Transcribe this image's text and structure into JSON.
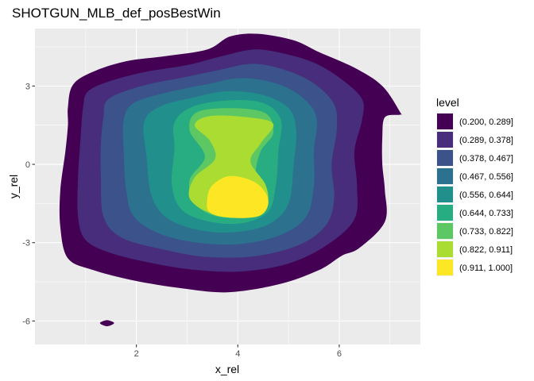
{
  "chart_data": {
    "type": "filled-density-contour",
    "title": "SHOTGUN_MLB_def_posBestWin",
    "xlabel": "x_rel",
    "ylabel": "y_rel",
    "xlim": [
      0.0,
      7.6
    ],
    "ylim": [
      -6.9,
      5.2
    ],
    "x_ticks": [
      2,
      4,
      6
    ],
    "y_ticks": [
      -6,
      -3,
      0,
      3
    ],
    "grid": true,
    "legend": {
      "title": "level",
      "placement": "right",
      "entries": [
        {
          "label": "(0.200, 0.289]",
          "color": "#440154"
        },
        {
          "label": "(0.289, 0.378]",
          "color": "#472D7B"
        },
        {
          "label": "(0.378, 0.467]",
          "color": "#3B528B"
        },
        {
          "label": "(0.467, 0.556]",
          "color": "#2C728E"
        },
        {
          "label": "(0.556, 0.644]",
          "color": "#21908C"
        },
        {
          "label": "(0.644, 0.733]",
          "color": "#27AD81"
        },
        {
          "label": "(0.733, 0.822]",
          "color": "#5DC863"
        },
        {
          "label": "(0.822, 0.911]",
          "color": "#AADC32"
        },
        {
          "label": "(0.911, 1.000]",
          "color": "#FDE725"
        }
      ]
    },
    "contours": [
      {
        "level": 0,
        "points": [
          [
            0.65,
            2.2
          ],
          [
            0.75,
            3.05
          ],
          [
            1.15,
            3.55
          ],
          [
            1.8,
            3.95
          ],
          [
            2.6,
            4.15
          ],
          [
            3.4,
            4.4
          ],
          [
            3.85,
            4.9
          ],
          [
            4.4,
            5.0
          ],
          [
            5.1,
            4.75
          ],
          [
            5.6,
            4.3
          ],
          [
            6.3,
            3.7
          ],
          [
            6.85,
            3.0
          ],
          [
            7.2,
            2.0
          ],
          [
            7.2,
            1.9
          ],
          [
            6.9,
            1.8
          ],
          [
            6.85,
            1.0
          ],
          [
            6.85,
            0.0
          ],
          [
            6.9,
            -1.0
          ],
          [
            6.9,
            -2.2
          ],
          [
            6.4,
            -3.2
          ],
          [
            6.05,
            -3.5
          ],
          [
            5.6,
            -4.05
          ],
          [
            4.8,
            -4.6
          ],
          [
            3.8,
            -4.9
          ],
          [
            2.9,
            -4.75
          ],
          [
            1.95,
            -4.45
          ],
          [
            1.15,
            -4.05
          ],
          [
            0.65,
            -3.6
          ],
          [
            0.5,
            -2.4
          ],
          [
            0.5,
            -1.0
          ],
          [
            0.6,
            0.5
          ],
          [
            0.65,
            1.5
          ]
        ]
      },
      {
        "level": 0,
        "points": [
          [
            1.28,
            -6.08
          ],
          [
            1.42,
            -5.97
          ],
          [
            1.56,
            -6.08
          ],
          [
            1.42,
            -6.2
          ]
        ]
      },
      {
        "level": 1,
        "points": [
          [
            0.95,
            2.2
          ],
          [
            1.05,
            2.8
          ],
          [
            1.5,
            3.2
          ],
          [
            2.2,
            3.55
          ],
          [
            3.0,
            3.8
          ],
          [
            3.7,
            4.15
          ],
          [
            4.35,
            4.4
          ],
          [
            5.0,
            4.2
          ],
          [
            5.55,
            3.85
          ],
          [
            6.05,
            3.25
          ],
          [
            6.45,
            2.5
          ],
          [
            6.45,
            1.7
          ],
          [
            6.3,
            0.5
          ],
          [
            6.35,
            -0.8
          ],
          [
            6.3,
            -2.1
          ],
          [
            5.75,
            -3.1
          ],
          [
            5.0,
            -3.8
          ],
          [
            4.1,
            -4.1
          ],
          [
            3.2,
            -4.05
          ],
          [
            2.35,
            -3.8
          ],
          [
            1.5,
            -3.4
          ],
          [
            1.0,
            -2.9
          ],
          [
            0.85,
            -2.0
          ],
          [
            0.85,
            -0.5
          ],
          [
            0.9,
            1.0
          ]
        ]
      },
      {
        "level": 2,
        "points": [
          [
            1.35,
            1.8
          ],
          [
            1.45,
            2.5
          ],
          [
            2.1,
            3.0
          ],
          [
            2.85,
            3.3
          ],
          [
            3.6,
            3.6
          ],
          [
            4.3,
            3.85
          ],
          [
            4.95,
            3.6
          ],
          [
            5.5,
            3.1
          ],
          [
            5.9,
            2.3
          ],
          [
            5.95,
            1.3
          ],
          [
            5.85,
            0.0
          ],
          [
            5.9,
            -1.3
          ],
          [
            5.75,
            -2.3
          ],
          [
            5.25,
            -3.05
          ],
          [
            4.4,
            -3.5
          ],
          [
            3.4,
            -3.55
          ],
          [
            2.5,
            -3.25
          ],
          [
            1.7,
            -2.8
          ],
          [
            1.35,
            -2.0
          ],
          [
            1.3,
            -0.5
          ],
          [
            1.3,
            0.8
          ]
        ]
      },
      {
        "level": 3,
        "points": [
          [
            1.75,
            1.7
          ],
          [
            1.95,
            2.35
          ],
          [
            2.6,
            2.75
          ],
          [
            3.35,
            3.05
          ],
          [
            4.05,
            3.3
          ],
          [
            4.75,
            3.1
          ],
          [
            5.25,
            2.6
          ],
          [
            5.55,
            1.8
          ],
          [
            5.5,
            0.5
          ],
          [
            5.5,
            -0.8
          ],
          [
            5.35,
            -2.0
          ],
          [
            4.85,
            -2.7
          ],
          [
            4.05,
            -3.05
          ],
          [
            3.2,
            -3.0
          ],
          [
            2.45,
            -2.65
          ],
          [
            1.95,
            -2.0
          ],
          [
            1.8,
            -1.0
          ],
          [
            1.75,
            0.5
          ]
        ]
      },
      {
        "level": 4,
        "points": [
          [
            2.15,
            1.6
          ],
          [
            2.45,
            2.2
          ],
          [
            3.1,
            2.55
          ],
          [
            3.8,
            2.8
          ],
          [
            4.5,
            2.65
          ],
          [
            5.0,
            2.15
          ],
          [
            5.15,
            1.3
          ],
          [
            5.1,
            0.0
          ],
          [
            5.0,
            -1.5
          ],
          [
            4.6,
            -2.3
          ],
          [
            3.9,
            -2.6
          ],
          [
            3.2,
            -2.5
          ],
          [
            2.6,
            -2.05
          ],
          [
            2.3,
            -1.2
          ],
          [
            2.2,
            0.3
          ]
        ]
      },
      {
        "level": 5,
        "points": [
          [
            2.75,
            1.6
          ],
          [
            3.1,
            2.2
          ],
          [
            3.8,
            2.45
          ],
          [
            4.5,
            2.35
          ],
          [
            4.85,
            1.7
          ],
          [
            4.8,
            0.5
          ],
          [
            4.75,
            -0.8
          ],
          [
            4.6,
            -1.8
          ],
          [
            4.1,
            -2.25
          ],
          [
            3.45,
            -2.2
          ],
          [
            2.9,
            -1.75
          ],
          [
            2.7,
            -0.8
          ],
          [
            2.75,
            0.6
          ]
        ]
      },
      {
        "level": 6,
        "points": [
          [
            3.05,
            1.3
          ],
          [
            3.2,
            2.0
          ],
          [
            3.9,
            2.15
          ],
          [
            4.55,
            1.95
          ],
          [
            4.7,
            1.2
          ],
          [
            4.45,
            0.5
          ],
          [
            4.35,
            -0.4
          ],
          [
            4.45,
            -1.3
          ],
          [
            4.2,
            -1.95
          ],
          [
            3.6,
            -2.0
          ],
          [
            3.15,
            -1.5
          ],
          [
            3.05,
            -0.6
          ],
          [
            3.35,
            0.3
          ]
        ]
      },
      {
        "level": 7,
        "points": [
          [
            3.15,
            1.5
          ],
          [
            3.45,
            1.85
          ],
          [
            4.2,
            1.8
          ],
          [
            4.7,
            1.55
          ],
          [
            4.45,
            0.8
          ],
          [
            4.25,
            0.1
          ],
          [
            4.55,
            -0.8
          ],
          [
            4.55,
            -1.55
          ],
          [
            4.05,
            -1.9
          ],
          [
            3.45,
            -1.85
          ],
          [
            3.05,
            -1.3
          ],
          [
            3.15,
            -0.5
          ],
          [
            3.55,
            0.2
          ],
          [
            3.45,
            0.9
          ]
        ]
      },
      {
        "level": 8,
        "points": [
          [
            3.5,
            -0.8
          ],
          [
            3.85,
            -0.45
          ],
          [
            4.35,
            -0.7
          ],
          [
            4.6,
            -1.35
          ],
          [
            4.45,
            -1.95
          ],
          [
            3.9,
            -2.05
          ],
          [
            3.45,
            -1.85
          ],
          [
            3.4,
            -1.3
          ]
        ]
      }
    ]
  }
}
